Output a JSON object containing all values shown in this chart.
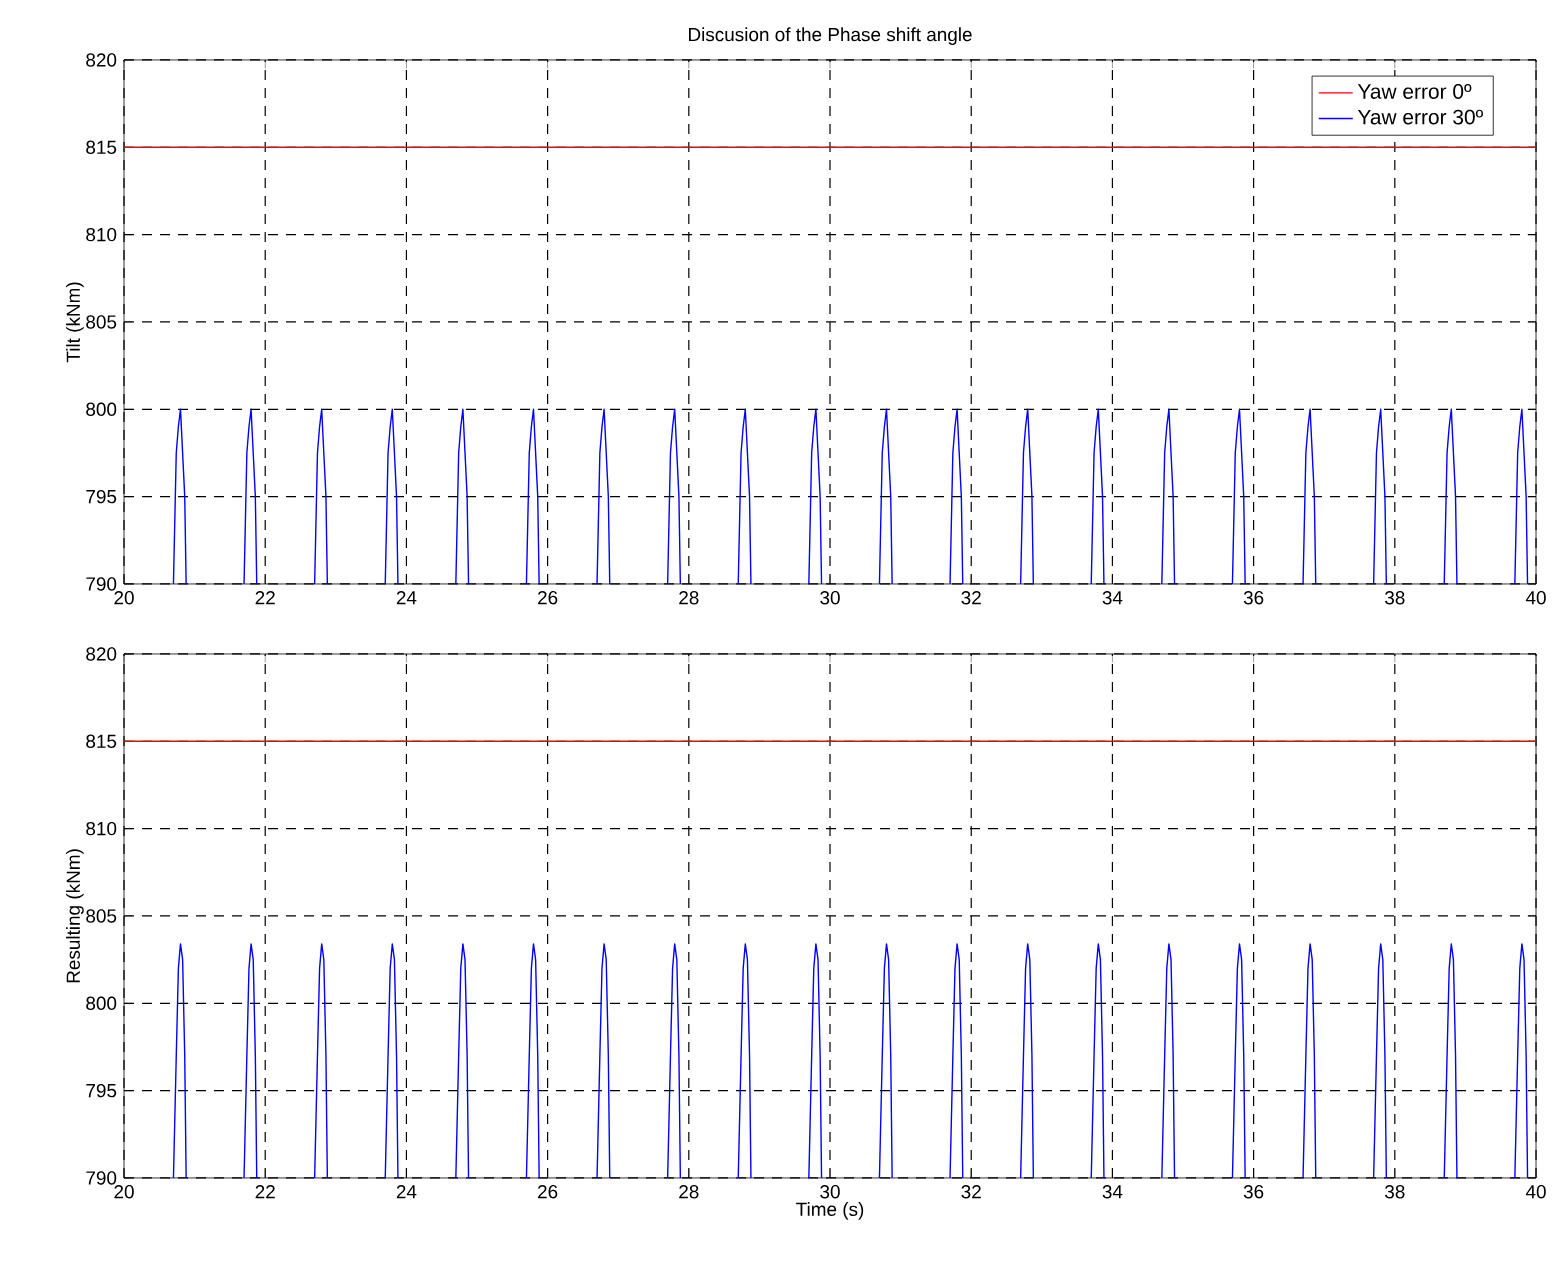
{
  "chart_data": [
    {
      "type": "line",
      "title": "Discusion of the Phase shift angle",
      "ylabel": "Tilt (kNm)",
      "xlim": [
        20,
        40
      ],
      "ylim": [
        790,
        820
      ],
      "xticks": [
        20,
        22,
        24,
        26,
        28,
        30,
        32,
        34,
        36,
        38,
        40
      ],
      "yticks": [
        790,
        795,
        800,
        805,
        810,
        815,
        820
      ],
      "grid": true,
      "legend": "top right",
      "line_style": "solid",
      "marker": "none",
      "series": [
        {
          "name": "Yaw error 0º",
          "color": "#ff0000",
          "x": [
            20,
            40
          ],
          "values": [
            815,
            815
          ]
        },
        {
          "name": "Yaw error 30º",
          "color": "#0000ff",
          "x": [
            20.7,
            20.74,
            20.77,
            20.8,
            20.83,
            20.86,
            20.88,
            20.9,
            21.7,
            21.74,
            21.77,
            21.8,
            21.83,
            21.86,
            21.88,
            21.9,
            22.7,
            22.74,
            22.77,
            22.8,
            22.83,
            22.86,
            22.88,
            22.9,
            23.7,
            23.74,
            23.77,
            23.8,
            23.83,
            23.86,
            23.88,
            23.9,
            24.7,
            24.74,
            24.77,
            24.8,
            24.83,
            24.86,
            24.88,
            24.9,
            25.7,
            25.74,
            25.77,
            25.8,
            25.83,
            25.86,
            25.88,
            25.9,
            26.7,
            26.74,
            26.77,
            26.8,
            26.83,
            26.86,
            26.88,
            26.9,
            27.7,
            27.74,
            27.77,
            27.8,
            27.83,
            27.86,
            27.88,
            27.9,
            28.7,
            28.74,
            28.77,
            28.8,
            28.83,
            28.86,
            28.88,
            28.9,
            29.7,
            29.74,
            29.77,
            29.8,
            29.83,
            29.86,
            29.88,
            29.9,
            30.7,
            30.74,
            30.77,
            30.8,
            30.83,
            30.86,
            30.88,
            30.9,
            31.7,
            31.74,
            31.77,
            31.8,
            31.83,
            31.86,
            31.88,
            31.9,
            32.7,
            32.74,
            32.77,
            32.8,
            32.83,
            32.86,
            32.88,
            32.9,
            33.7,
            33.74,
            33.77,
            33.8,
            33.83,
            33.86,
            33.88,
            33.9,
            34.7,
            34.74,
            34.77,
            34.8,
            34.83,
            34.86,
            34.88,
            34.9,
            35.7,
            35.74,
            35.77,
            35.8,
            35.83,
            35.86,
            35.88,
            35.9,
            36.7,
            36.74,
            36.77,
            36.8,
            36.83,
            36.86,
            36.88,
            36.9,
            37.7,
            37.74,
            37.77,
            37.8,
            37.83,
            37.86,
            37.88,
            37.9,
            38.7,
            38.74,
            38.77,
            38.8,
            38.83,
            38.86,
            38.88,
            38.9,
            39.7,
            39.74,
            39.77,
            39.8,
            39.83,
            39.86,
            39.88
          ],
          "values": [
            790,
            797.5,
            799,
            800,
            797.5,
            795,
            790,
            null,
            790,
            797.5,
            799,
            800,
            797.5,
            795,
            790,
            null,
            790,
            797.5,
            799,
            800,
            797.5,
            795,
            790,
            null,
            790,
            797.5,
            799,
            800,
            797.5,
            795,
            790,
            null,
            790,
            797.5,
            799,
            800,
            797.5,
            795,
            790,
            null,
            790,
            797.5,
            799,
            800,
            797.5,
            795,
            790,
            null,
            790,
            797.5,
            799,
            800,
            797.5,
            795,
            790,
            null,
            790,
            797.5,
            799,
            800,
            797.5,
            795,
            790,
            null,
            790,
            797.5,
            799,
            800,
            797.5,
            795,
            790,
            null,
            790,
            797.5,
            799,
            800,
            797.5,
            795,
            790,
            null,
            790,
            797.5,
            799,
            800,
            797.5,
            795,
            790,
            null,
            790,
            797.5,
            799,
            800,
            797.5,
            795,
            790,
            null,
            790,
            797.5,
            799,
            800,
            797.5,
            795,
            790,
            null,
            790,
            797.5,
            799,
            800,
            797.5,
            795,
            790,
            null,
            790,
            797.5,
            799,
            800,
            797.5,
            795,
            790,
            null,
            790,
            797.5,
            799,
            800,
            797.5,
            795,
            790,
            null,
            790,
            797.5,
            799,
            800,
            797.5,
            795,
            790,
            null,
            790,
            797.5,
            799,
            800,
            797.5,
            795,
            790,
            null,
            790,
            797.5,
            799,
            800,
            797.5,
            795,
            790,
            null,
            790,
            797.5,
            799,
            800,
            797.5,
            795,
            790
          ]
        }
      ]
    },
    {
      "type": "line",
      "ylabel": "Resulting (kNm)",
      "xlabel": "Time (s)",
      "xlim": [
        20,
        40
      ],
      "ylim": [
        790,
        820
      ],
      "xticks": [
        20,
        22,
        24,
        26,
        28,
        30,
        32,
        34,
        36,
        38,
        40
      ],
      "yticks": [
        790,
        795,
        800,
        805,
        810,
        815,
        820
      ],
      "grid": true,
      "line_style": "solid",
      "marker": "none",
      "series": [
        {
          "color": "#ff0000",
          "x": [
            20,
            40
          ],
          "values": [
            815,
            815
          ]
        },
        {
          "color": "#0000ff",
          "x": [
            20.7,
            20.74,
            20.77,
            20.8,
            20.83,
            20.86,
            20.88,
            20.9,
            21.7,
            21.74,
            21.77,
            21.8,
            21.83,
            21.86,
            21.88,
            21.9,
            22.7,
            22.74,
            22.77,
            22.8,
            22.83,
            22.86,
            22.88,
            22.9,
            23.7,
            23.74,
            23.77,
            23.8,
            23.83,
            23.86,
            23.88,
            23.9,
            24.7,
            24.74,
            24.77,
            24.8,
            24.83,
            24.86,
            24.88,
            24.9,
            25.7,
            25.74,
            25.77,
            25.8,
            25.83,
            25.86,
            25.88,
            25.9,
            26.7,
            26.74,
            26.77,
            26.8,
            26.83,
            26.86,
            26.88,
            26.9,
            27.7,
            27.74,
            27.77,
            27.8,
            27.83,
            27.86,
            27.88,
            27.9,
            28.7,
            28.74,
            28.77,
            28.8,
            28.83,
            28.86,
            28.88,
            28.9,
            29.7,
            29.74,
            29.77,
            29.8,
            29.83,
            29.86,
            29.88,
            29.9,
            30.7,
            30.74,
            30.77,
            30.8,
            30.83,
            30.86,
            30.88,
            30.9,
            31.7,
            31.74,
            31.77,
            31.8,
            31.83,
            31.86,
            31.88,
            31.9,
            32.7,
            32.74,
            32.77,
            32.8,
            32.83,
            32.86,
            32.88,
            32.9,
            33.7,
            33.74,
            33.77,
            33.8,
            33.83,
            33.86,
            33.88,
            33.9,
            34.7,
            34.74,
            34.77,
            34.8,
            34.83,
            34.86,
            34.88,
            34.9,
            35.7,
            35.74,
            35.77,
            35.8,
            35.83,
            35.86,
            35.88,
            35.9,
            36.7,
            36.74,
            36.77,
            36.8,
            36.83,
            36.86,
            36.88,
            36.9,
            37.7,
            37.74,
            37.77,
            37.8,
            37.83,
            37.86,
            37.88,
            37.9,
            38.7,
            38.74,
            38.77,
            38.8,
            38.83,
            38.86,
            38.88,
            38.9,
            39.7,
            39.74,
            39.77,
            39.8,
            39.83,
            39.86,
            39.88
          ],
          "values": [
            790,
            797,
            802,
            803.4,
            802.5,
            797,
            790,
            null,
            790,
            797,
            802,
            803.4,
            802.5,
            797,
            790,
            null,
            790,
            797,
            802,
            803.4,
            802.5,
            797,
            790,
            null,
            790,
            797,
            802,
            803.4,
            802.5,
            797,
            790,
            null,
            790,
            797,
            802,
            803.4,
            802.5,
            797,
            790,
            null,
            790,
            797,
            802,
            803.4,
            802.5,
            797,
            790,
            null,
            790,
            797,
            802,
            803.4,
            802.5,
            797,
            790,
            null,
            790,
            797,
            802,
            803.4,
            802.5,
            797,
            790,
            null,
            790,
            797,
            802,
            803.4,
            802.5,
            797,
            790,
            null,
            790,
            797,
            802,
            803.4,
            802.5,
            797,
            790,
            null,
            790,
            797,
            802,
            803.4,
            802.5,
            797,
            790,
            null,
            790,
            797,
            802,
            803.4,
            802.5,
            797,
            790,
            null,
            790,
            797,
            802,
            803.4,
            802.5,
            797,
            790,
            null,
            790,
            797,
            802,
            803.4,
            802.5,
            797,
            790,
            null,
            790,
            797,
            802,
            803.4,
            802.5,
            797,
            790,
            null,
            790,
            797,
            802,
            803.4,
            802.5,
            797,
            790,
            null,
            790,
            797,
            802,
            803.4,
            802.5,
            797,
            790,
            null,
            790,
            797,
            802,
            803.4,
            802.5,
            797,
            790,
            null,
            790,
            797,
            802,
            803.4,
            802.5,
            797,
            790,
            null,
            790,
            797,
            802,
            803.4,
            802.5,
            797,
            790
          ]
        }
      ]
    }
  ]
}
